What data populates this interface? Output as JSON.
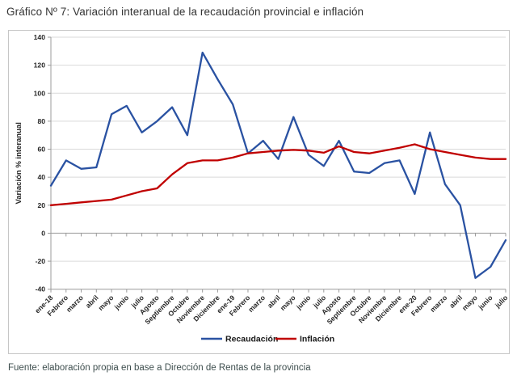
{
  "page": {
    "title": "Gráfico Nº 7: Variación interanual de la recaudación provincial e inflación",
    "source_note": "Fuente: elaboración propia en base a Dirección de Rentas de la provincia"
  },
  "chart_data": {
    "type": "line",
    "title": "",
    "xlabel": "",
    "ylabel": "Variación % interanual",
    "ylim": [
      -40,
      140
    ],
    "ytick_step": 20,
    "grid": true,
    "legend_position": "bottom",
    "categories": [
      "ene-18",
      "Febrero",
      "marzo",
      "abril",
      "mayo",
      "junio",
      "julio",
      "Agosto",
      "Septiembre",
      "Octubre",
      "Noviembre",
      "Diciembre",
      "ene-19",
      "Febrero",
      "marzo",
      "abril",
      "mayo",
      "junio",
      "julio",
      "Agosto",
      "Septiembre",
      "Octubre",
      "Noviembre",
      "Diciembre",
      "ene-20",
      "Febrero",
      "marzo",
      "abril",
      "mayo",
      "junio",
      "julio"
    ],
    "series": [
      {
        "name": "Recaudación",
        "color": "#2a52a2",
        "values": [
          34,
          52,
          46,
          47,
          85,
          91,
          72,
          80,
          90,
          70,
          129,
          110,
          92,
          57,
          66,
          53,
          83,
          56,
          48,
          66,
          44,
          43,
          50,
          52,
          28,
          72,
          35,
          20,
          -32,
          -24,
          -5
        ]
      },
      {
        "name": "Inflación",
        "color": "#c00000",
        "values": [
          20,
          21,
          22,
          23,
          24,
          27,
          30,
          32,
          42,
          50,
          52,
          52,
          54,
          57,
          58,
          59,
          59.5,
          59,
          57.5,
          62,
          58,
          57,
          59,
          61,
          63.5,
          60,
          58,
          56,
          54,
          53,
          53
        ]
      }
    ],
    "colors": {
      "gridline": "#d9d9d9",
      "axis": "#9b9b9b",
      "frame_border": "#c6c6c6",
      "tick_text": "#262626",
      "title_text": "#333333",
      "source_text": "#3e4e4e"
    }
  }
}
